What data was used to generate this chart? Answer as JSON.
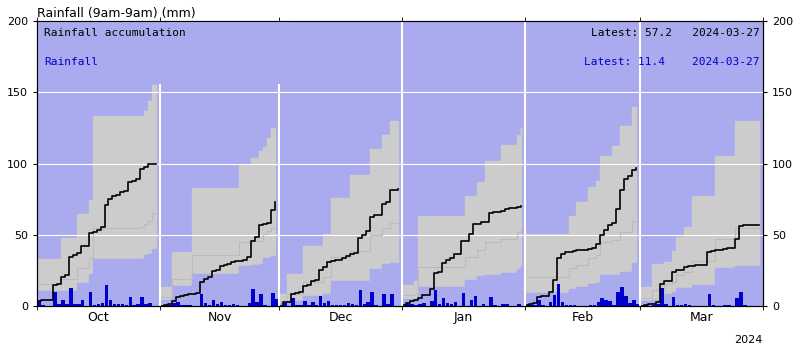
{
  "title": "Rainfall (9am-9am) (mm)",
  "background_color": "#aaaaee",
  "fig_bg_color": "#ffffff",
  "ylim": [
    0,
    200
  ],
  "yticks": [
    0,
    50,
    100,
    150,
    200
  ],
  "months": [
    "Oct",
    "Nov",
    "Dec",
    "Jan",
    "Feb",
    "Mar"
  ],
  "year_label": "2024",
  "legend_line1": "Rainfall accumulation",
  "legend_line2": "Rainfall",
  "latest_accum": "57.2",
  "latest_rain": "11.4",
  "latest_date": "2024-03-27",
  "accum_color": "#000000",
  "rain_color": "#0000cc",
  "band_blue_color": "#aaaaee",
  "band_gray_color": "#cccccc",
  "mean_color": "#aaaaaa",
  "month_lengths": [
    31,
    30,
    31,
    31,
    29,
    31
  ],
  "month_day_offsets": [
    0,
    31,
    61,
    92,
    123,
    152
  ],
  "monthly_days_shown": [
    31,
    30,
    31,
    31,
    29,
    27
  ],
  "monthly_totals": [
    100,
    73,
    82,
    70,
    97,
    57
  ],
  "upper_monthly_finals": [
    155,
    125,
    130,
    125,
    140,
    130
  ],
  "lower_monthly_finals": [
    40,
    35,
    30,
    28,
    30,
    28
  ],
  "mean_monthly_finals": [
    65,
    55,
    58,
    55,
    60,
    55
  ]
}
